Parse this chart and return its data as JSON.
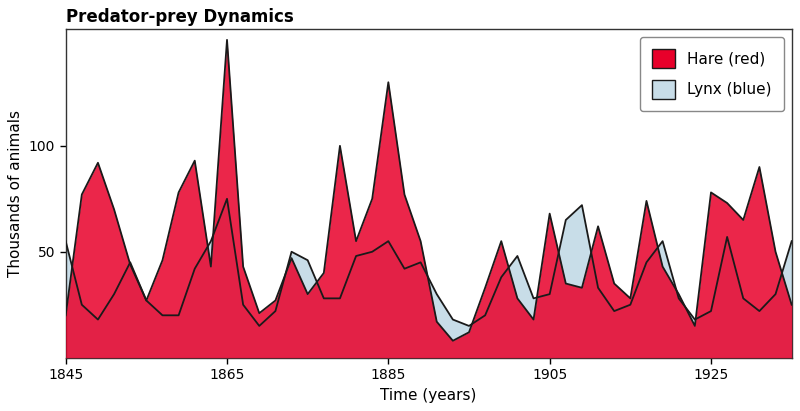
{
  "title": "Predator-prey Dynamics",
  "xlabel": "Time (years)",
  "ylabel": "Thousands of animals",
  "hare_label": "Hare (red)",
  "lynx_label": "Lynx (blue)",
  "years": [
    1845,
    1847,
    1849,
    1851,
    1853,
    1855,
    1857,
    1859,
    1861,
    1863,
    1865,
    1867,
    1869,
    1871,
    1873,
    1875,
    1877,
    1879,
    1881,
    1883,
    1885,
    1887,
    1889,
    1891,
    1893,
    1895,
    1897,
    1899,
    1901,
    1903,
    1905,
    1907,
    1909,
    1911,
    1913,
    1915,
    1917,
    1919,
    1921,
    1923,
    1925,
    1927,
    1929,
    1931,
    1933,
    1935
  ],
  "hare": [
    20,
    77,
    92,
    70,
    44,
    27,
    46,
    78,
    93,
    43,
    150,
    43,
    21,
    27,
    47,
    30,
    40,
    100,
    55,
    75,
    130,
    77,
    55,
    17,
    8,
    12,
    33,
    55,
    28,
    18,
    68,
    35,
    33,
    62,
    35,
    28,
    74,
    43,
    30,
    15,
    78,
    73,
    65,
    90,
    50,
    25
  ],
  "lynx": [
    55,
    25,
    18,
    30,
    45,
    27,
    20,
    20,
    42,
    55,
    75,
    25,
    15,
    22,
    50,
    46,
    28,
    28,
    48,
    50,
    55,
    42,
    45,
    30,
    18,
    15,
    20,
    38,
    48,
    28,
    30,
    65,
    72,
    33,
    22,
    25,
    45,
    55,
    28,
    18,
    22,
    57,
    28,
    22,
    30,
    55
  ],
  "hare_color": "#e8002a",
  "hare_edge_color": "#1a1a1a",
  "lynx_color": "#c8dde8",
  "lynx_edge_color": "#1a1a1a",
  "overlap_color": "#c8a0b0",
  "background_color": "#ffffff",
  "yticks": [
    50,
    100
  ],
  "xticks": [
    1845,
    1865,
    1885,
    1905,
    1925
  ],
  "ylim": [
    0,
    155
  ],
  "xlim": [
    1845,
    1935
  ],
  "title_fontsize": 12,
  "label_fontsize": 11,
  "tick_fontsize": 10
}
